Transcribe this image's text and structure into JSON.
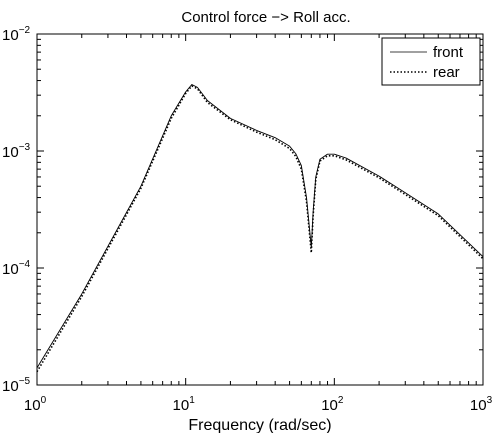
{
  "chart_data": {
    "type": "line",
    "title": "Control force −> Roll acc.",
    "xlabel": "Frequency (rad/sec)",
    "ylabel": "",
    "xscale": "log",
    "yscale": "log",
    "xlim": [
      1,
      1000
    ],
    "ylim": [
      1e-05,
      0.01
    ],
    "x_ticks": [
      {
        "value": 1,
        "base": "10",
        "exp": "0"
      },
      {
        "value": 10,
        "base": "10",
        "exp": "1"
      },
      {
        "value": 100,
        "base": "10",
        "exp": "2"
      },
      {
        "value": 1000,
        "base": "10",
        "exp": "3"
      }
    ],
    "y_ticks": [
      {
        "value": 1e-05,
        "base": "10",
        "exp": "−5"
      },
      {
        "value": 0.0001,
        "base": "10",
        "exp": "−4"
      },
      {
        "value": 0.001,
        "base": "10",
        "exp": "−3"
      },
      {
        "value": 0.01,
        "base": "10",
        "exp": "−2"
      }
    ],
    "grid": false,
    "legend_position": "top-right",
    "x": [
      1,
      2,
      5,
      8,
      10,
      11,
      12,
      14,
      20,
      30,
      40,
      50,
      55,
      60,
      65,
      68,
      70,
      72,
      75,
      80,
      90,
      100,
      120,
      200,
      300,
      500,
      1000
    ],
    "series": [
      {
        "name": "front",
        "style": "solid",
        "color": "#000000",
        "values": [
          1.4e-05,
          6e-05,
          0.0005,
          0.002,
          0.0032,
          0.0037,
          0.0035,
          0.0027,
          0.0019,
          0.0015,
          0.0013,
          0.0011,
          0.00095,
          0.00075,
          0.0004,
          0.00022,
          0.00015,
          0.0003,
          0.0006,
          0.00085,
          0.00094,
          0.00094,
          0.00087,
          0.00061,
          0.00044,
          0.00029,
          0.000125
        ]
      },
      {
        "name": "rear",
        "style": "dotted",
        "color": "#000000",
        "values": [
          1.3e-05,
          5.7e-05,
          0.00048,
          0.0019,
          0.0031,
          0.0036,
          0.0034,
          0.0026,
          0.00185,
          0.00145,
          0.00125,
          0.00105,
          0.0009,
          0.0007,
          0.00037,
          0.0002,
          0.000135,
          0.00028,
          0.00057,
          0.00082,
          0.00091,
          0.00091,
          0.00084,
          0.00059,
          0.000425,
          0.00028,
          0.00012
        ]
      }
    ]
  }
}
